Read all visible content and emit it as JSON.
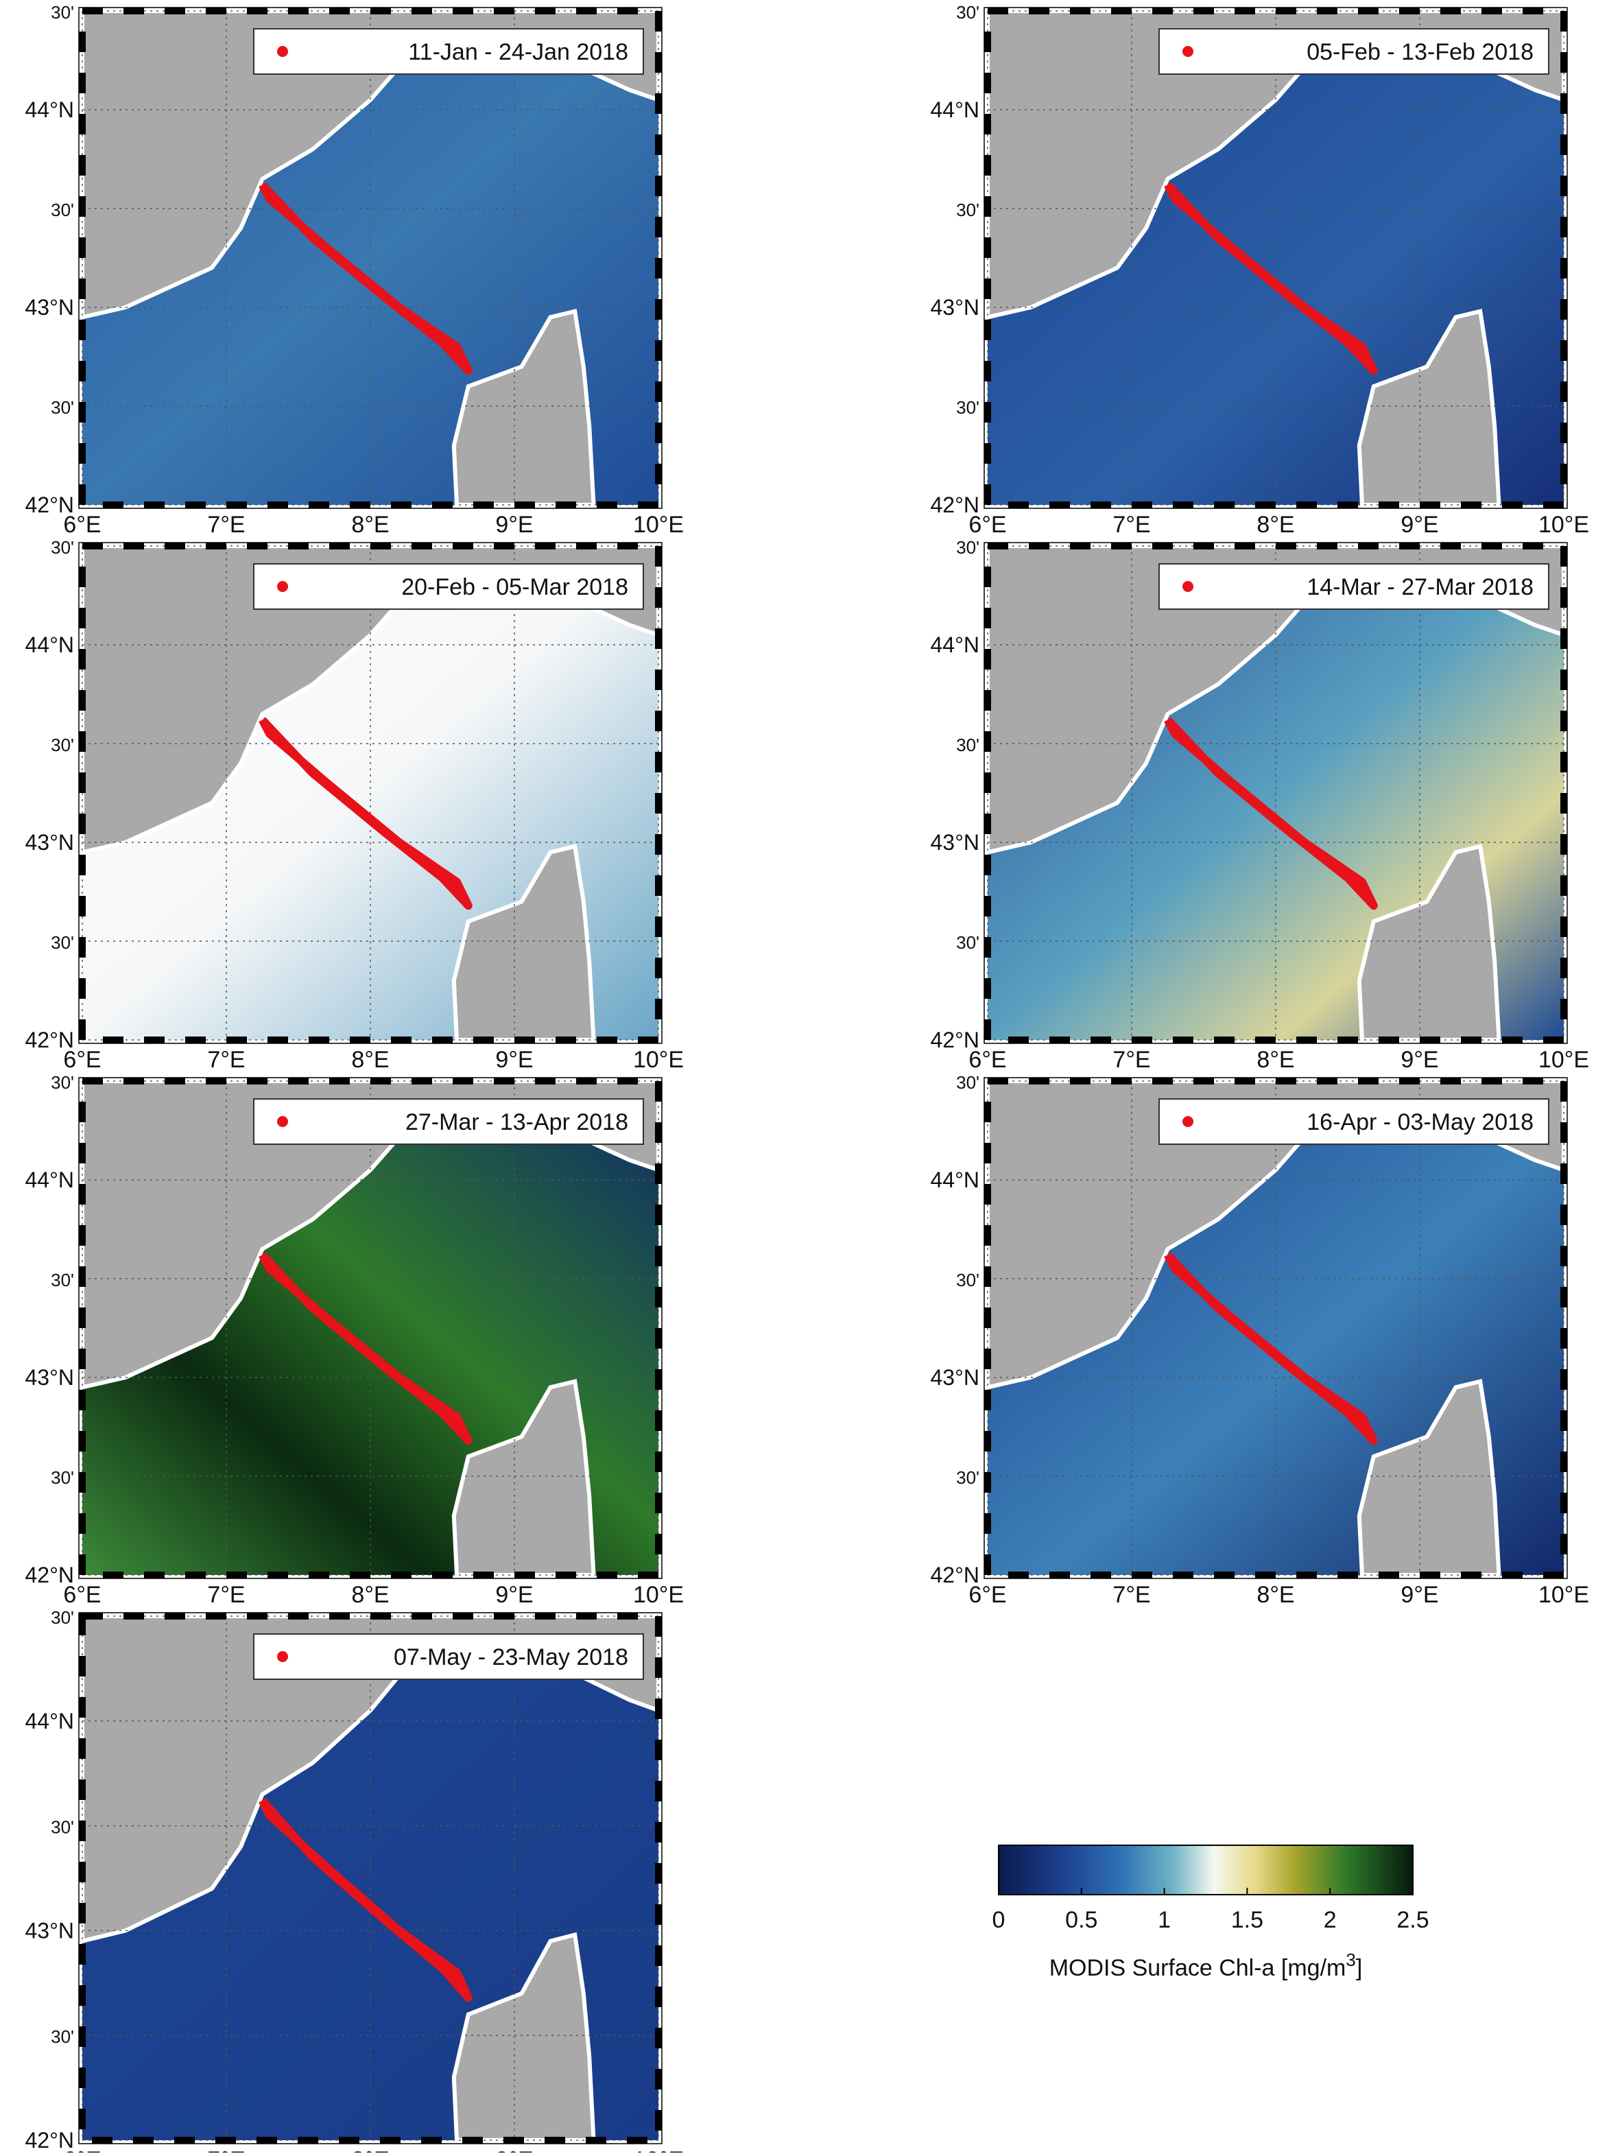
{
  "panels": [
    {
      "legend": "11-Jan - 24-Jan 2018"
    },
    {
      "legend": "05-Feb - 13-Feb 2018"
    },
    {
      "legend": "20-Feb - 05-Mar 2018"
    },
    {
      "legend": "14-Mar - 27-Mar 2018"
    },
    {
      "legend": "27-Mar - 13-Apr 2018"
    },
    {
      "legend": "16-Apr - 03-May 2018"
    },
    {
      "legend": "07-May - 23-May 2018"
    }
  ],
  "lon_lim": [
    6,
    10
  ],
  "lat_lim": [
    42,
    44.5
  ],
  "lon_ticks": [
    {
      "value": 6,
      "label": "6°E"
    },
    {
      "value": 7,
      "label": "7°E"
    },
    {
      "value": 8,
      "label": "8°E"
    },
    {
      "value": 9,
      "label": "9°E"
    },
    {
      "value": 10,
      "label": "10°E"
    }
  ],
  "lat_ticks": [
    {
      "value": 42,
      "label": "42°N"
    },
    {
      "value": 42.5,
      "label": "30'"
    },
    {
      "value": 43,
      "label": "43°N"
    },
    {
      "value": 43.5,
      "label": "30'"
    },
    {
      "value": 44,
      "label": "44°N"
    },
    {
      "value": 44.5,
      "label": "30'"
    }
  ],
  "colorbar": {
    "lim": [
      0,
      2.5
    ],
    "ticks": [
      0,
      0.5,
      1,
      1.5,
      2,
      2.5
    ],
    "label": "MODIS Surface Chl-a [mg/m",
    "label_sup": "3",
    "label_end": "]"
  }
}
